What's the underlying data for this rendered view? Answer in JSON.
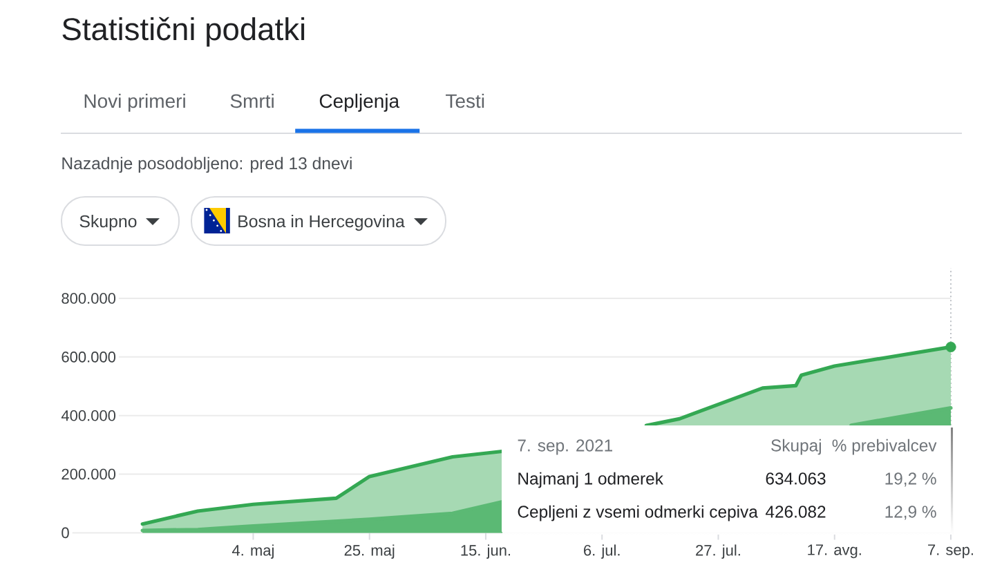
{
  "chart_data": {
    "type": "area",
    "title": "Statistični podatki",
    "annotations": [
      "Novi primeri",
      "Smrti",
      "Cepljenja",
      "Testi",
      "Nazadnje posodobljeno: pred 13 dnevi",
      "Skupno",
      "Bosna in Hercegovina",
      "7. sep. 2021",
      "Skupaj",
      "% prebivalcev",
      "Najmanj 1 odmerek",
      "634.063",
      "19,2 %",
      "Cepljeni z vsemi odmerki cepiva",
      "426.082",
      "12,9 %"
    ],
    "xlim": [
      "2021-03-31",
      "2021-09-07"
    ],
    "xticks": [
      {
        "value": "2021-05-04",
        "label": "4. maj"
      },
      {
        "value": "2021-05-25",
        "label": "25. maj"
      },
      {
        "value": "2021-06-15",
        "label": "15. jun."
      },
      {
        "value": "2021-07-06",
        "label": "6. jul."
      },
      {
        "value": "2021-07-27",
        "label": "27. jul."
      },
      {
        "value": "2021-08-17",
        "label": "17. avg."
      },
      {
        "value": "2021-09-07",
        "label": "7. sep."
      }
    ],
    "ylim": [
      0,
      800000
    ],
    "yticks": [
      0,
      {
        "value": 200000,
        "label": "200.000"
      },
      {
        "value": 400000,
        "label": "400.000"
      },
      {
        "value": 600000,
        "label": "600.000"
      },
      {
        "value": 800000,
        "label": "800.000"
      }
    ],
    "grid": "y",
    "series": [
      {
        "color": "#34a853",
        "x": [
          "2021-04-14",
          "2021-04-24",
          "2021-05-04",
          "2021-05-19",
          "2021-05-25",
          "2021-06-09",
          "2021-06-18",
          "2021-07-01",
          "2021-07-14",
          "2021-07-20",
          "2021-08-04",
          "2021-08-10",
          "2021-08-11",
          "2021-08-17",
          "2021-09-07"
        ],
        "values": [
          30000,
          74000,
          97000,
          118000,
          192000,
          259000,
          278000,
          null,
          366000,
          389000,
          494000,
          502000,
          538000,
          569000,
          634063
        ]
      },
      {
        "color": "#5bb974",
        "x": [
          "2021-04-14",
          "2021-04-24",
          "2021-05-03",
          "2021-05-25",
          "2021-06-09",
          "2021-06-18",
          "2021-07-01",
          "2021-08-20",
          "2021-09-07"
        ],
        "values": [
          8000,
          11000,
          22000,
          46000,
          66000,
          106000,
          null,
          367000,
          426082
        ]
      },
      {
        "type": "scatter",
        "color": "#34a853",
        "marker": "circle",
        "x": [
          "2021-09-07"
        ],
        "values": [
          634063
        ]
      }
    ],
    "ref_lines": [
      {
        "axis": "x",
        "value": "2021-09-07",
        "color": "#bdc1c6",
        "line_style": "dotted"
      }
    ]
  }
}
